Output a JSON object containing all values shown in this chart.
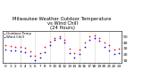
{
  "title": "Milwaukee Weather Outdoor Temperature\nvs Wind Chill\n(24 Hours)",
  "title_fontsize": 3.8,
  "bg_color": "#ffffff",
  "plot_bg": "#ffffff",
  "grid_color": "#aaaaaa",
  "temp_color": "#ff0000",
  "windchill_color": "#0000ff",
  "legend_temp": "Outdoor Temp",
  "legend_wc": "Wind Chill",
  "hours": [
    0,
    1,
    2,
    3,
    4,
    5,
    6,
    7,
    8,
    9,
    10,
    11,
    12,
    13,
    14,
    15,
    16,
    17,
    18,
    19,
    20,
    21,
    22,
    23
  ],
  "temp": [
    35,
    34,
    33,
    32,
    31,
    25,
    18,
    22,
    32,
    42,
    48,
    50,
    45,
    30,
    22,
    28,
    40,
    50,
    52,
    48,
    40,
    35,
    28,
    30
  ],
  "windchill": [
    28,
    27,
    26,
    25,
    24,
    18,
    10,
    14,
    24,
    36,
    44,
    47,
    40,
    22,
    14,
    20,
    33,
    45,
    48,
    43,
    33,
    27,
    20,
    22
  ],
  "ylim": [
    5,
    60
  ],
  "xlim": [
    -0.5,
    23.5
  ],
  "ytick_vals": [
    10,
    20,
    30,
    40,
    50
  ],
  "ytick_labels": [
    "10",
    "20",
    "30",
    "40",
    "50"
  ],
  "xtick_vals": [
    0,
    1,
    2,
    3,
    4,
    5,
    6,
    7,
    8,
    9,
    10,
    11,
    12,
    13,
    14,
    15,
    16,
    17,
    18,
    19,
    20,
    21,
    22,
    23
  ],
  "ylabel_fontsize": 3.2,
  "xlabel_fontsize": 3.0,
  "dot_size": 1.5,
  "legend_fontsize": 2.8,
  "vgrid_positions": [
    3,
    6,
    9,
    12,
    15,
    18,
    21
  ]
}
